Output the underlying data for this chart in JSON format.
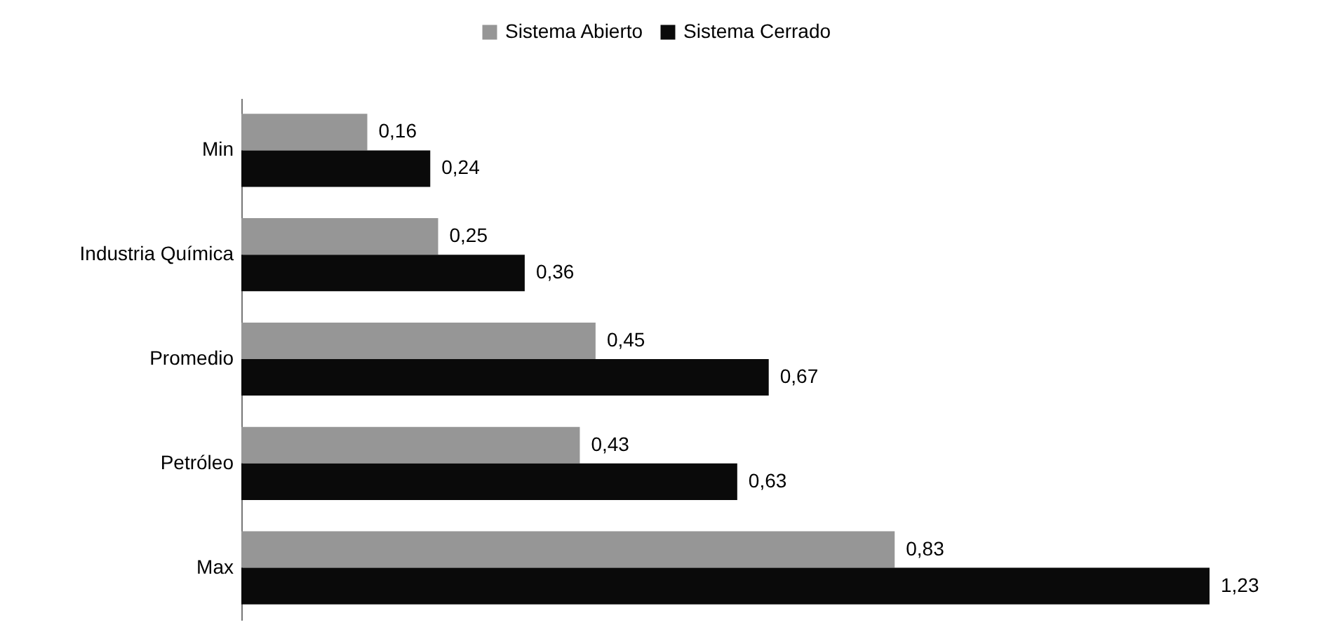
{
  "chart_data": {
    "type": "bar",
    "orientation": "horizontal",
    "categories": [
      "Min",
      "Industria Química",
      "Promedio",
      "Petróleo",
      "Max"
    ],
    "series": [
      {
        "name": "Sistema Abierto",
        "color": "#969696",
        "values": [
          0.16,
          0.25,
          0.45,
          0.43,
          0.83
        ],
        "value_labels": [
          "0,16",
          "0,25",
          "0,45",
          "0,43",
          "0,83"
        ]
      },
      {
        "name": "Sistema Cerrado",
        "color": "#0a0a0a",
        "values": [
          0.24,
          0.36,
          0.67,
          0.63,
          1.23
        ],
        "value_labels": [
          "0,24",
          "0,36",
          "0,67",
          "0,63",
          "1,23"
        ]
      }
    ],
    "legend": "top",
    "tick_labels": "y"
  }
}
